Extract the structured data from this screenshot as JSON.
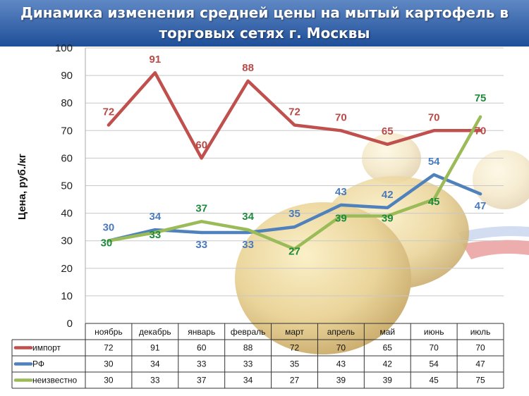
{
  "title": {
    "line1": "Динамика изменения средней цены на мытый картофель в",
    "line2": "торговых сетях г. Москвы"
  },
  "chart_data": {
    "type": "line",
    "ylabel": "Цена, руб./кг",
    "xlabel": "",
    "ylim": [
      0,
      100
    ],
    "yticks": [
      "0",
      "10",
      "20",
      "30",
      "40",
      "50",
      "60",
      "70",
      "80",
      "90",
      "100"
    ],
    "grid": true,
    "legend": "data-table-below",
    "categories": [
      "ноябрь",
      "декабрь",
      "январь",
      "февраль",
      "март",
      "апрель",
      "май",
      "июнь",
      "июль"
    ],
    "series": [
      {
        "name": "импорт",
        "color": "#c0504d",
        "label_color": "#b84a47",
        "values": [
          72,
          91,
          60,
          88,
          72,
          70,
          65,
          70,
          70
        ],
        "labels": [
          "72",
          "91",
          "60",
          "88",
          "72",
          "70",
          "65",
          "70",
          "70"
        ]
      },
      {
        "name": "РФ",
        "color": "#4f81bd",
        "label_color": "#4a7bbd",
        "values": [
          30,
          34,
          33,
          33,
          35,
          43,
          42,
          54,
          47
        ],
        "labels": [
          "30",
          "34",
          "33",
          "33",
          "35",
          "43",
          "42",
          "54",
          "47"
        ]
      },
      {
        "name": "неизвестно",
        "color": "#9bbb59",
        "label_color": "#1e8a3c",
        "values": [
          30,
          33,
          37,
          34,
          27,
          39,
          39,
          45,
          75
        ],
        "labels": [
          "30",
          "33",
          "37",
          "34",
          "27",
          "39",
          "39",
          "45",
          "75"
        ]
      }
    ]
  }
}
